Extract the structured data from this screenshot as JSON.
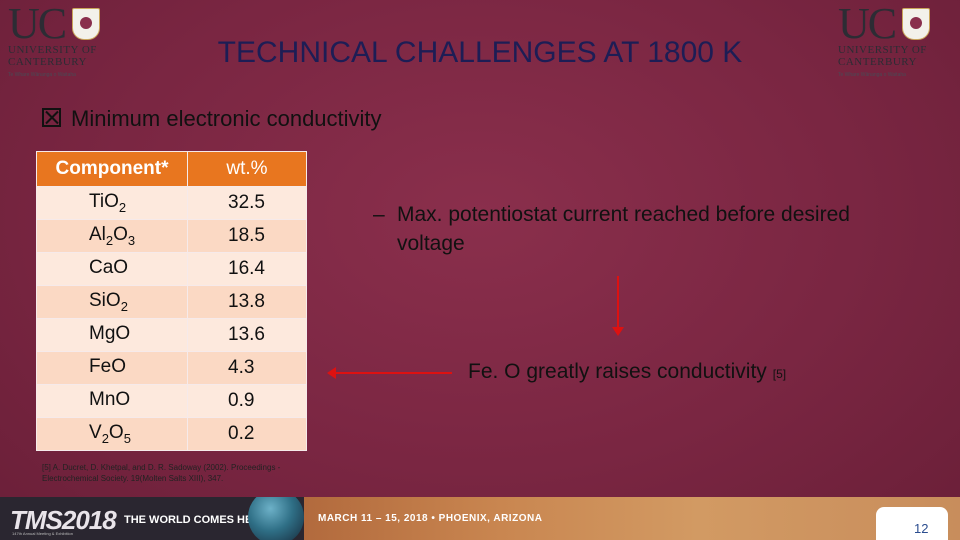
{
  "logos": {
    "left": {
      "uc": "UC",
      "name": "UNIVERSITY OF\nCANTERBURY",
      "tag": "Te Whare Wānanga o Waitaha"
    },
    "right": {
      "uc": "UC",
      "name": "UNIVERSITY OF\nCANTERBURY",
      "tag": "Te Whare Wānanga o Waitaha"
    }
  },
  "title": "TECHNICAL CHALLENGES AT 1800 K",
  "bullet": {
    "icon": "x-box-icon",
    "text": "Minimum electronic conductivity"
  },
  "table": {
    "headers": [
      "Component*",
      "wt.%"
    ],
    "rows": [
      {
        "base": "Ti",
        "sub": "",
        "tail": "O",
        "sub2": "2",
        "value": "32.5"
      },
      {
        "base": "Al",
        "sub": "2",
        "tail": "O",
        "sub2": "3",
        "value": "18.5"
      },
      {
        "base": "Ca",
        "sub": "",
        "tail": "O",
        "sub2": "",
        "value": "16.4"
      },
      {
        "base": "Si",
        "sub": "",
        "tail": "O",
        "sub2": "2",
        "value": "13.8"
      },
      {
        "base": "Mg",
        "sub": "",
        "tail": "O",
        "sub2": "",
        "value": "13.6"
      },
      {
        "base": "Fe",
        "sub": "",
        "tail": "O",
        "sub2": "",
        "value": "4.3"
      },
      {
        "base": "Mn",
        "sub": "",
        "tail": "O",
        "sub2": "",
        "value": "0.9"
      },
      {
        "base": "V",
        "sub": "2",
        "tail": "O",
        "sub2": "5",
        "value": "0.2"
      }
    ]
  },
  "dash_point": {
    "dash": "–",
    "text": "Max. potentiostat current reached before desired voltage"
  },
  "feo": {
    "text": "Fe. O greatly raises conductivity",
    "ref": "[5]"
  },
  "citation": "[5] A. Ducret, D. Khetpal, and D. R. Sadoway (2002). Proceedings - Electrochemical Society. 19(Molten Salts XIII), 347.",
  "footer": {
    "tms": "TMS2018",
    "tms_sub": "147th Annual Meeting & Exhibition",
    "world": "THE WORLD COMES HERE.",
    "dates": "MARCH 11 – 15, 2018 • PHOENIX, ARIZONA",
    "page": "12"
  },
  "colors": {
    "header_orange": "#e8761f",
    "row_light": "#fde9dd",
    "row_dark": "#fbd9c4",
    "title_blue": "#1d1d55",
    "arrow_red": "#d11"
  }
}
